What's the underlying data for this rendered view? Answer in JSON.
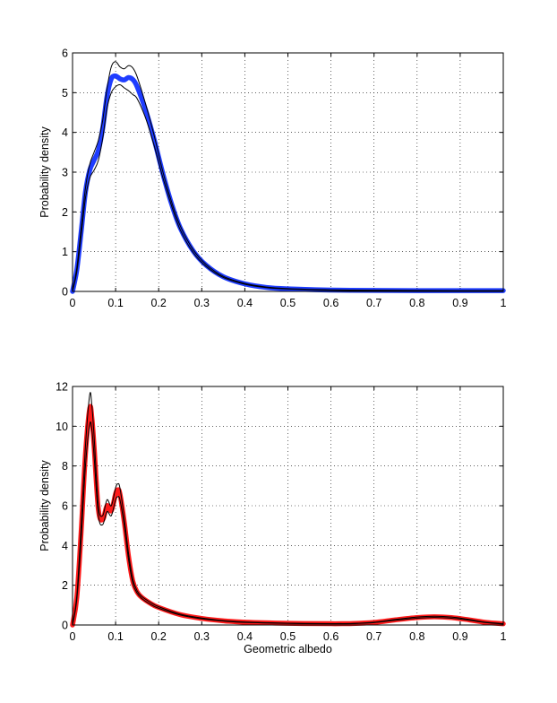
{
  "chart_data": [
    {
      "type": "line",
      "title": "",
      "xlabel": "",
      "ylabel": "Probability density",
      "xlim": [
        0,
        1
      ],
      "ylim": [
        0,
        6
      ],
      "x_ticks": [
        "0",
        "0.1",
        "0.2",
        "0.3",
        "0.4",
        "0.5",
        "0.6",
        "0.7",
        "0.8",
        "0.9",
        "1"
      ],
      "y_ticks": [
        "0",
        "1",
        "2",
        "3",
        "4",
        "5",
        "6"
      ],
      "grid": true,
      "band_color": "#1f3dff",
      "bound_color": "#000000",
      "series": [
        {
          "role": "upper-bound",
          "x": [
            0.0,
            0.01,
            0.02,
            0.03,
            0.04,
            0.05,
            0.06,
            0.07,
            0.08,
            0.09,
            0.1,
            0.11,
            0.12,
            0.13,
            0.14,
            0.15,
            0.17,
            0.19,
            0.21,
            0.23,
            0.25,
            0.28,
            0.31,
            0.35,
            0.4,
            0.45,
            0.5,
            0.6,
            0.7,
            0.8,
            0.9,
            1.0
          ],
          "y": [
            0.0,
            0.6,
            1.6,
            2.6,
            3.2,
            3.5,
            3.8,
            4.3,
            5.1,
            5.65,
            5.78,
            5.65,
            5.6,
            5.68,
            5.62,
            5.4,
            4.7,
            3.9,
            3.0,
            2.25,
            1.65,
            1.05,
            0.68,
            0.38,
            0.2,
            0.11,
            0.07,
            0.04,
            0.03,
            0.025,
            0.02,
            0.02
          ]
        },
        {
          "role": "mean",
          "x": [
            0.0,
            0.01,
            0.02,
            0.03,
            0.04,
            0.05,
            0.06,
            0.07,
            0.08,
            0.09,
            0.1,
            0.11,
            0.12,
            0.13,
            0.14,
            0.15,
            0.17,
            0.19,
            0.21,
            0.23,
            0.25,
            0.28,
            0.31,
            0.35,
            0.4,
            0.45,
            0.5,
            0.6,
            0.7,
            0.8,
            0.9,
            1.0
          ],
          "y": [
            0.0,
            0.55,
            1.5,
            2.5,
            3.05,
            3.3,
            3.55,
            4.1,
            4.9,
            5.35,
            5.42,
            5.35,
            5.32,
            5.38,
            5.33,
            5.15,
            4.55,
            3.8,
            2.95,
            2.2,
            1.6,
            1.02,
            0.66,
            0.37,
            0.19,
            0.1,
            0.065,
            0.035,
            0.025,
            0.02,
            0.02,
            0.02
          ]
        },
        {
          "role": "lower-bound",
          "x": [
            0.0,
            0.01,
            0.02,
            0.03,
            0.04,
            0.05,
            0.06,
            0.07,
            0.08,
            0.09,
            0.1,
            0.11,
            0.12,
            0.13,
            0.14,
            0.15,
            0.17,
            0.19,
            0.21,
            0.23,
            0.25,
            0.28,
            0.31,
            0.35,
            0.4,
            0.45,
            0.5,
            0.6,
            0.7,
            0.8,
            0.9,
            1.0
          ],
          "y": [
            0.0,
            0.5,
            1.4,
            2.35,
            2.85,
            3.05,
            3.3,
            3.85,
            4.6,
            5.0,
            5.15,
            5.2,
            5.12,
            5.05,
            4.95,
            4.85,
            4.35,
            3.65,
            2.85,
            2.15,
            1.55,
            0.98,
            0.63,
            0.35,
            0.18,
            0.095,
            0.06,
            0.03,
            0.02,
            0.015,
            0.015,
            0.015
          ]
        }
      ]
    },
    {
      "type": "line",
      "title": "",
      "xlabel": "Geometric albedo",
      "ylabel": "Probability density",
      "xlim": [
        0,
        1
      ],
      "ylim": [
        0,
        12
      ],
      "x_ticks": [
        "0",
        "0.1",
        "0.2",
        "0.3",
        "0.4",
        "0.5",
        "0.6",
        "0.7",
        "0.8",
        "0.9",
        "1"
      ],
      "y_ticks": [
        "0",
        "2",
        "4",
        "6",
        "8",
        "10",
        "12"
      ],
      "grid": true,
      "band_color": "#ff1a1a",
      "bound_color": "#000000",
      "series": [
        {
          "role": "upper-bound",
          "x": [
            0.0,
            0.01,
            0.02,
            0.03,
            0.04,
            0.045,
            0.05,
            0.06,
            0.07,
            0.08,
            0.09,
            0.1,
            0.105,
            0.11,
            0.12,
            0.13,
            0.14,
            0.15,
            0.16,
            0.18,
            0.2,
            0.25,
            0.3,
            0.35,
            0.4,
            0.5,
            0.6,
            0.65,
            0.7,
            0.75,
            0.8,
            0.84,
            0.88,
            0.92,
            0.96,
            1.0
          ],
          "y": [
            0.0,
            1.5,
            5.0,
            9.0,
            11.6,
            11.0,
            9.5,
            6.0,
            5.5,
            6.3,
            6.0,
            6.9,
            7.1,
            6.9,
            5.4,
            3.6,
            2.3,
            1.72,
            1.45,
            1.15,
            0.92,
            0.55,
            0.35,
            0.22,
            0.15,
            0.09,
            0.07,
            0.08,
            0.14,
            0.28,
            0.4,
            0.44,
            0.4,
            0.28,
            0.14,
            0.07
          ]
        },
        {
          "role": "mean",
          "x": [
            0.0,
            0.01,
            0.02,
            0.03,
            0.04,
            0.045,
            0.05,
            0.06,
            0.07,
            0.08,
            0.09,
            0.1,
            0.105,
            0.11,
            0.12,
            0.13,
            0.14,
            0.15,
            0.16,
            0.18,
            0.2,
            0.25,
            0.3,
            0.35,
            0.4,
            0.5,
            0.6,
            0.65,
            0.7,
            0.75,
            0.8,
            0.84,
            0.88,
            0.92,
            0.96,
            1.0
          ],
          "y": [
            0.0,
            1.4,
            4.7,
            8.6,
            10.9,
            10.4,
            9.0,
            5.8,
            5.3,
            6.0,
            5.75,
            6.6,
            6.8,
            6.6,
            5.2,
            3.45,
            2.2,
            1.66,
            1.4,
            1.1,
            0.88,
            0.52,
            0.33,
            0.21,
            0.14,
            0.085,
            0.065,
            0.075,
            0.13,
            0.26,
            0.37,
            0.41,
            0.37,
            0.26,
            0.13,
            0.06
          ]
        },
        {
          "role": "lower-bound",
          "x": [
            0.0,
            0.01,
            0.02,
            0.03,
            0.04,
            0.045,
            0.05,
            0.06,
            0.07,
            0.08,
            0.09,
            0.1,
            0.105,
            0.11,
            0.12,
            0.13,
            0.14,
            0.15,
            0.16,
            0.18,
            0.2,
            0.25,
            0.3,
            0.35,
            0.4,
            0.5,
            0.6,
            0.65,
            0.7,
            0.75,
            0.8,
            0.84,
            0.88,
            0.92,
            0.96,
            1.0
          ],
          "y": [
            0.0,
            1.3,
            4.3,
            8.0,
            10.1,
            9.8,
            8.5,
            5.5,
            5.05,
            5.7,
            5.5,
            6.3,
            6.45,
            6.3,
            5.0,
            3.3,
            2.1,
            1.6,
            1.35,
            1.05,
            0.84,
            0.5,
            0.31,
            0.2,
            0.13,
            0.08,
            0.06,
            0.07,
            0.12,
            0.24,
            0.34,
            0.38,
            0.34,
            0.24,
            0.12,
            0.05
          ]
        }
      ]
    }
  ]
}
